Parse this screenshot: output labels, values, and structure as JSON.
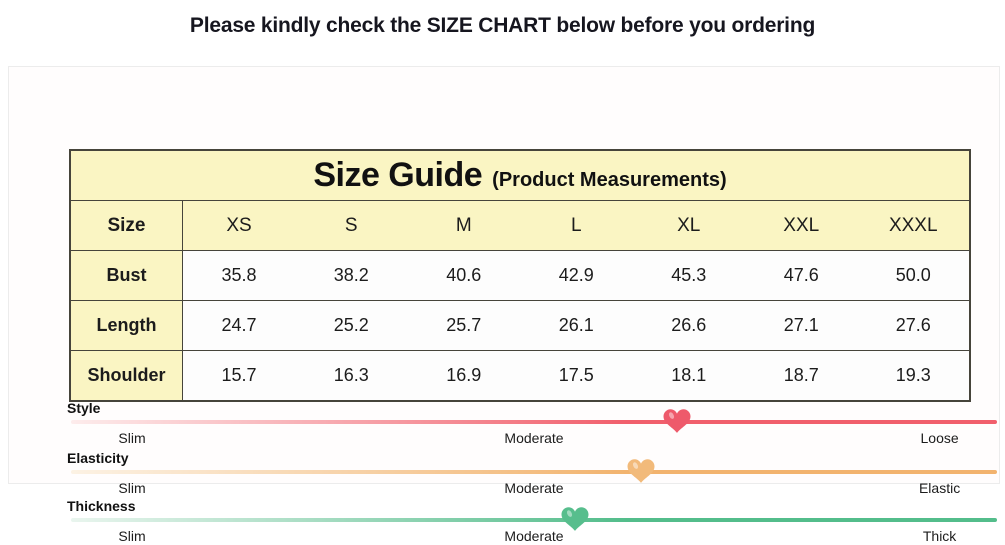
{
  "page": {
    "title": "Please kindly check the SIZE CHART below before you ordering"
  },
  "colors": {
    "table_header_bg": "#faf5c3",
    "table_border": "#46443b",
    "table_cell_bg": "#fdfdfd",
    "title_text": "#16161f"
  },
  "chart_data": {
    "type": "table",
    "title": "Size Guide",
    "subtitle": "(Product Measurements)",
    "corner_label": "Size",
    "columns": [
      "XS",
      "S",
      "M",
      "L",
      "XL",
      "XXL",
      "XXXL"
    ],
    "rows": [
      {
        "label": "Bust",
        "values": [
          "35.8",
          "38.2",
          "40.6",
          "42.9",
          "45.3",
          "47.6",
          "50.0"
        ]
      },
      {
        "label": "Length",
        "values": [
          "24.7",
          "25.2",
          "25.7",
          "26.1",
          "26.6",
          "27.1",
          "27.6"
        ]
      },
      {
        "label": "Shoulder",
        "values": [
          "15.7",
          "16.3",
          "16.9",
          "17.5",
          "18.1",
          "18.7",
          "19.3"
        ]
      }
    ],
    "scales": [
      {
        "name": "Style",
        "labels": [
          "Slim",
          "Moderate",
          "Loose"
        ],
        "marker_position_percent": 65.4,
        "track_start_color": "#fdecec",
        "track_end_color": "#f15f6c",
        "heart_color": "#ee5a6b"
      },
      {
        "name": "Elasticity",
        "labels": [
          "Slim",
          "Moderate",
          "Elastic"
        ],
        "marker_position_percent": 61.6,
        "track_start_color": "#fcf2e4",
        "track_end_color": "#f2b36e",
        "heart_color": "#f2ba7a"
      },
      {
        "name": "Thickness",
        "labels": [
          "Slim",
          "Moderate",
          "Thick"
        ],
        "marker_position_percent": 54.4,
        "track_start_color": "#e9f5ee",
        "track_end_color": "#53bd8b",
        "heart_color": "#57be8d"
      }
    ]
  }
}
